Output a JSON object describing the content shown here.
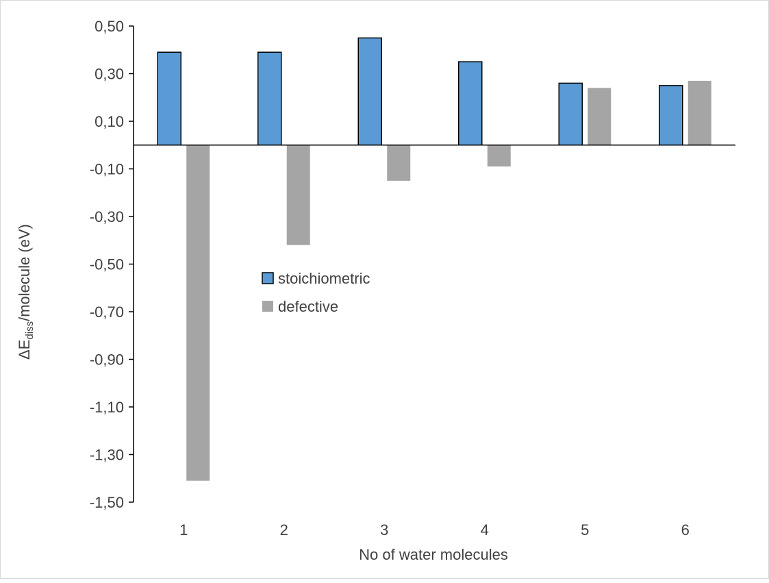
{
  "chart_data": {
    "type": "bar",
    "title": "",
    "xlabel": "No of water molecules",
    "ylabel_prefix": "ΔE",
    "ylabel_subscript": "diss",
    "ylabel_suffix": "/molecule (eV)",
    "categories": [
      "1",
      "2",
      "3",
      "4",
      "5",
      "6"
    ],
    "series": [
      {
        "name": "stoichiometric",
        "values": [
          0.39,
          0.39,
          0.45,
          0.35,
          0.26,
          0.25
        ],
        "color": "#5b9bd5",
        "outlined": true
      },
      {
        "name": "defective",
        "values": [
          -1.41,
          -0.42,
          -0.15,
          -0.09,
          0.24,
          0.27
        ],
        "color": "#a5a5a5",
        "outlined": false
      }
    ],
    "ylim": [
      -1.5,
      0.5
    ],
    "yticks": [
      0.5,
      0.3,
      0.1,
      -0.1,
      -0.3,
      -0.5,
      -0.7,
      -0.9,
      -1.1,
      -1.3,
      -1.5
    ],
    "ytick_labels": [
      "0,50",
      "0,30",
      "0,10",
      "-0,10",
      "-0,30",
      "-0,50",
      "-0,70",
      "-0,90",
      "-1,10",
      "-1,30",
      "-1,50"
    ],
    "grid": false,
    "legend_position": "center-left"
  }
}
